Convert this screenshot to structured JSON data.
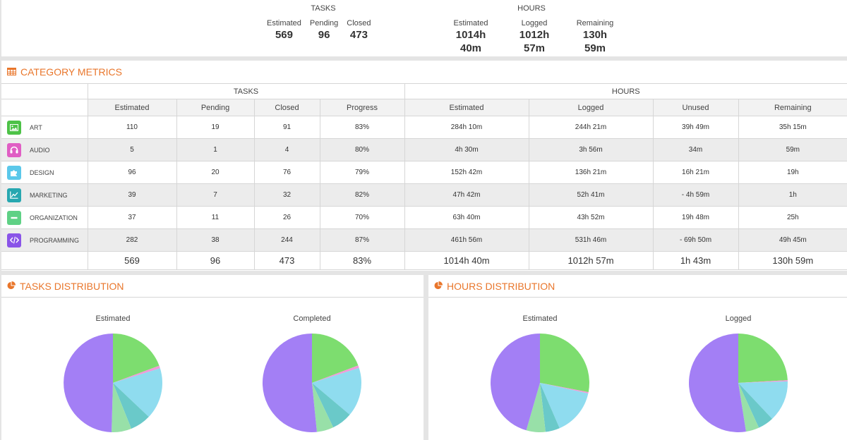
{
  "summary": {
    "tasks": {
      "title": "TASKS",
      "estimated_label": "Estimated",
      "estimated": "569",
      "pending_label": "Pending",
      "pending": "96",
      "closed_label": "Closed",
      "closed": "473"
    },
    "hours": {
      "title": "HOURS",
      "estimated_label": "Estimated",
      "estimated": "1014h 40m",
      "logged_label": "Logged",
      "logged": "1012h 57m",
      "remaining_label": "Remaining",
      "remaining": "130h 59m"
    }
  },
  "metrics": {
    "title": "CATEGORY METRICS",
    "group_headers": {
      "tasks": "TASKS",
      "hours": "HOURS"
    },
    "columns": [
      "Estimated",
      "Pending",
      "Closed",
      "Progress",
      "Estimated",
      "Logged",
      "Unused",
      "Remaining"
    ],
    "rows": [
      {
        "name": "ART",
        "icon": "image-icon",
        "color": "#4dc247",
        "values": [
          "110",
          "19",
          "91",
          "83%",
          "284h 10m",
          "244h 21m",
          "39h 49m",
          "35h 15m"
        ]
      },
      {
        "name": "AUDIO",
        "icon": "headphones-icon",
        "color": "#e05ec4",
        "values": [
          "5",
          "1",
          "4",
          "80%",
          "4h 30m",
          "3h 56m",
          "34m",
          "59m"
        ]
      },
      {
        "name": "DESIGN",
        "icon": "puzzle-icon",
        "color": "#5bc8ea",
        "values": [
          "96",
          "20",
          "76",
          "79%",
          "152h 42m",
          "136h 21m",
          "16h 21m",
          "19h"
        ]
      },
      {
        "name": "MARKETING",
        "icon": "chart-line-icon",
        "color": "#27a7b0",
        "values": [
          "39",
          "7",
          "32",
          "82%",
          "47h 42m",
          "52h 41m",
          "- 4h 59m",
          "1h"
        ]
      },
      {
        "name": "ORGANIZATION",
        "icon": "minus-icon",
        "color": "#5fd185",
        "values": [
          "37",
          "11",
          "26",
          "70%",
          "63h 40m",
          "43h 52m",
          "19h 48m",
          "25h"
        ]
      },
      {
        "name": "PROGRAMMING",
        "icon": "code-icon",
        "color": "#8a54e8",
        "values": [
          "282",
          "38",
          "244",
          "87%",
          "461h 56m",
          "531h 46m",
          "- 69h 50m",
          "49h 45m"
        ]
      }
    ],
    "totals": [
      "569",
      "96",
      "473",
      "83%",
      "1014h 40m",
      "1012h 57m",
      "1h 43m",
      "130h 59m"
    ]
  },
  "tasks_distribution": {
    "title": "TASKS DISTRIBUTION"
  },
  "hours_distribution": {
    "title": "HOURS DISTRIBUTION"
  },
  "chart_data": [
    {
      "type": "pie",
      "title": "Estimated",
      "panel": "tasks",
      "categories": [
        "ART",
        "AUDIO",
        "DESIGN",
        "MARKETING",
        "ORGANIZATION",
        "PROGRAMMING"
      ],
      "values": [
        110,
        5,
        96,
        39,
        37,
        282
      ],
      "colors": [
        "#7ddd6f",
        "#f09ad8",
        "#8fdcef",
        "#6ac9c9",
        "#98e0a8",
        "#a37ff5"
      ]
    },
    {
      "type": "pie",
      "title": "Completed",
      "panel": "tasks",
      "categories": [
        "ART",
        "AUDIO",
        "DESIGN",
        "MARKETING",
        "ORGANIZATION",
        "PROGRAMMING"
      ],
      "values": [
        91,
        4,
        76,
        32,
        26,
        244
      ],
      "colors": [
        "#7ddd6f",
        "#f09ad8",
        "#8fdcef",
        "#6ac9c9",
        "#98e0a8",
        "#a37ff5"
      ]
    },
    {
      "type": "pie",
      "title": "Estimated",
      "panel": "hours",
      "categories": [
        "ART",
        "AUDIO",
        "DESIGN",
        "MARKETING",
        "ORGANIZATION",
        "PROGRAMMING"
      ],
      "values": [
        284.17,
        4.5,
        152.7,
        47.7,
        63.67,
        461.93
      ],
      "colors": [
        "#7ddd6f",
        "#f09ad8",
        "#8fdcef",
        "#6ac9c9",
        "#98e0a8",
        "#a37ff5"
      ]
    },
    {
      "type": "pie",
      "title": "Logged",
      "panel": "hours",
      "categories": [
        "ART",
        "AUDIO",
        "DESIGN",
        "MARKETING",
        "ORGANIZATION",
        "PROGRAMMING"
      ],
      "values": [
        244.35,
        3.93,
        136.35,
        52.68,
        43.87,
        531.77
      ],
      "colors": [
        "#7ddd6f",
        "#f09ad8",
        "#8fdcef",
        "#6ac9c9",
        "#98e0a8",
        "#a37ff5"
      ]
    }
  ]
}
